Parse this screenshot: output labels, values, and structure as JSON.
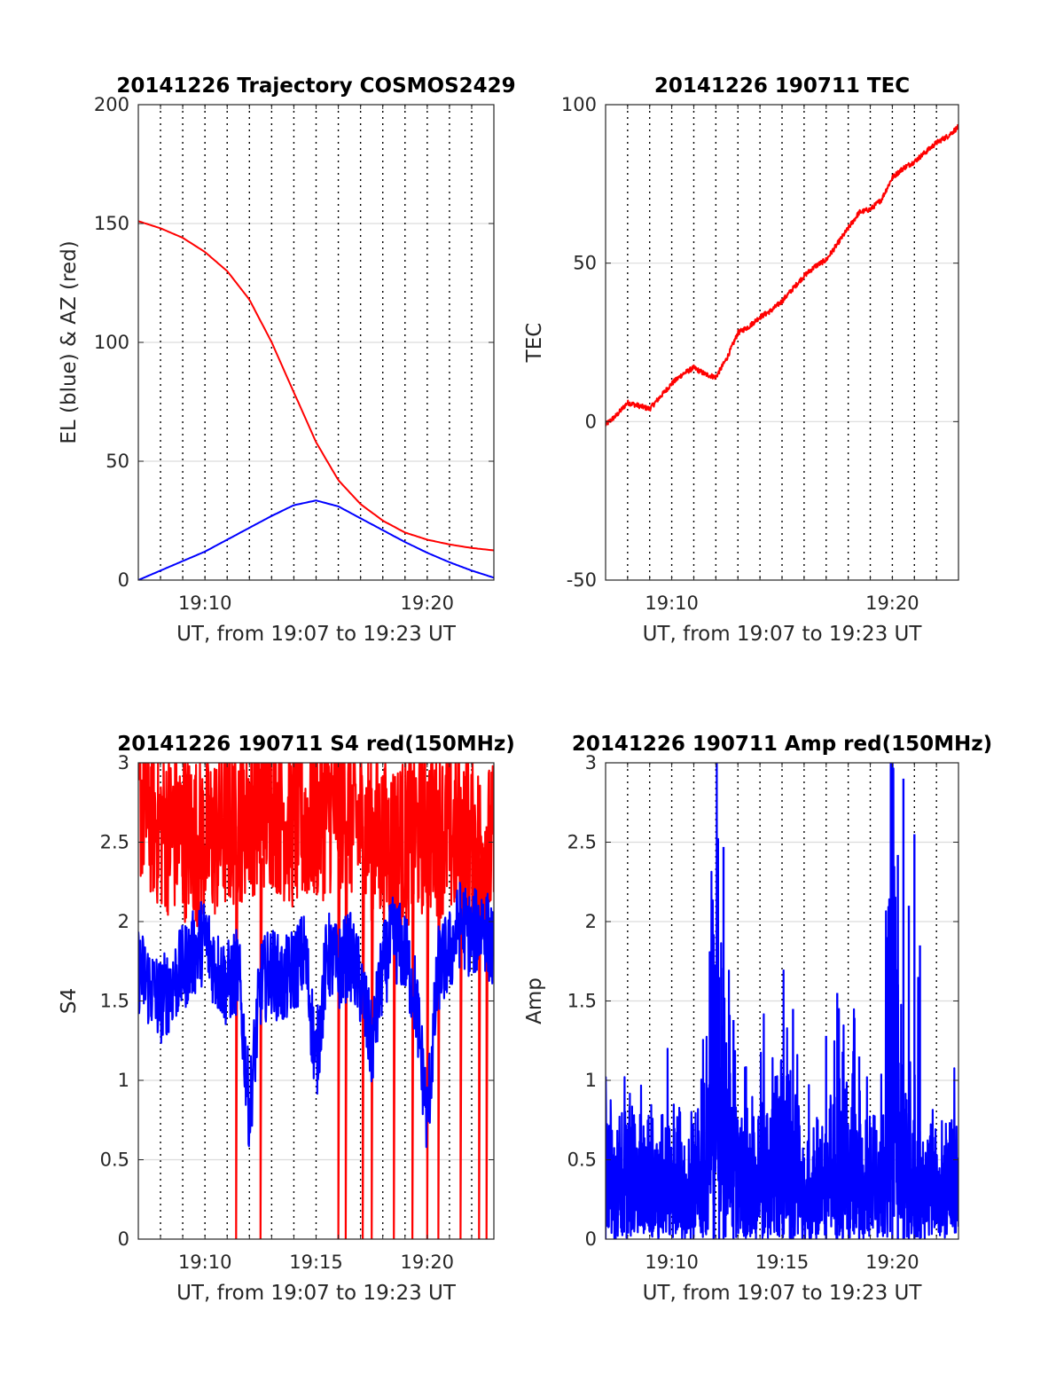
{
  "chart_data": [
    {
      "type": "line",
      "title": "20141226 Trajectory COSMOS2429",
      "xlabel": "UT, from 19:07 to 19:23 UT",
      "ylabel": "EL (blue) & AZ (red)",
      "xlim": [
        19.1167,
        19.3833
      ],
      "ylim": [
        0,
        200
      ],
      "yticks": [
        0,
        50,
        100,
        150,
        200
      ],
      "xticks": [
        {
          "v": 19.1667,
          "label": "19:10"
        },
        {
          "v": 19.3333,
          "label": "19:20"
        }
      ],
      "grid": true,
      "series": [
        {
          "color": "#ff0000",
          "x": [
            19.1167,
            19.1333,
            19.15,
            19.1667,
            19.1833,
            19.2,
            19.2167,
            19.2333,
            19.25,
            19.2667,
            19.2833,
            19.3,
            19.3167,
            19.3333,
            19.35,
            19.3667,
            19.3833
          ],
          "values": [
            151,
            148,
            144,
            138,
            130,
            118,
            100,
            79,
            58,
            42,
            32,
            25,
            20,
            17,
            15,
            13.5,
            12.5
          ]
        },
        {
          "color": "#0000ff",
          "x": [
            19.1167,
            19.1333,
            19.15,
            19.1667,
            19.1833,
            19.2,
            19.2167,
            19.2333,
            19.25,
            19.2667,
            19.2833,
            19.3,
            19.3167,
            19.3333,
            19.35,
            19.3667,
            19.3833
          ],
          "values": [
            0,
            4,
            8,
            12,
            17,
            22,
            27,
            31.5,
            33.5,
            31,
            26,
            21,
            16,
            11.5,
            7.5,
            4,
            1
          ]
        }
      ]
    },
    {
      "type": "line",
      "title": "20141226 190711 TEC",
      "xlabel": "UT, from 19:07 to 19:23 UT",
      "ylabel": "TEC",
      "xlim": [
        19.1167,
        19.3833
      ],
      "ylim": [
        -50,
        100
      ],
      "yticks": [
        -50,
        0,
        50,
        100
      ],
      "xticks": [
        {
          "v": 19.1667,
          "label": "19:10"
        },
        {
          "v": 19.3333,
          "label": "19:20"
        }
      ],
      "grid": true,
      "series": [
        {
          "color": "#ff0000",
          "noise": 0.8,
          "x": [
            19.1167,
            19.125,
            19.1333,
            19.1417,
            19.15,
            19.1583,
            19.1667,
            19.175,
            19.1833,
            19.1917,
            19.2,
            19.2083,
            19.2167,
            19.225,
            19.2333,
            19.2417,
            19.25,
            19.2583,
            19.2667,
            19.275,
            19.2833,
            19.2917,
            19.3,
            19.3083,
            19.3167,
            19.325,
            19.3333,
            19.3417,
            19.35,
            19.3583,
            19.3667,
            19.375,
            19.3833
          ],
          "values": [
            -1,
            2,
            6,
            5,
            4,
            8,
            12,
            15,
            17,
            15,
            14,
            20,
            28,
            30,
            33,
            35,
            38,
            42,
            46,
            49,
            51,
            56,
            61,
            66,
            67,
            70,
            77,
            80,
            82,
            85,
            88,
            90,
            93
          ]
        }
      ]
    },
    {
      "type": "line",
      "title": "20141226 190711 S4 red(150MHz)",
      "xlabel": "UT, from 19:07 to 19:23 UT",
      "ylabel": "S4",
      "xlim": [
        19.1167,
        19.3833
      ],
      "ylim": [
        0,
        3
      ],
      "yticks": [
        0,
        0.5,
        1,
        1.5,
        2,
        2.5,
        3
      ],
      "xticks": [
        {
          "v": 19.1667,
          "label": "19:10"
        },
        {
          "v": 19.25,
          "label": "19:15"
        },
        {
          "v": 19.3333,
          "label": "19:20"
        }
      ],
      "grid": true,
      "series": [
        {
          "color": "#ff0000",
          "noise": 0.55,
          "drops": [
            19.19,
            19.2083,
            19.2667,
            19.2722,
            19.285,
            19.2917,
            19.3083,
            19.3222,
            19.3333,
            19.3417,
            19.3583,
            19.3722,
            19.3778
          ],
          "x": [
            19.1167,
            19.1333,
            19.15,
            19.1667,
            19.1833,
            19.2,
            19.2167,
            19.2333,
            19.25,
            19.2667,
            19.2833,
            19.3,
            19.3167,
            19.3333,
            19.35,
            19.3667,
            19.3833
          ],
          "values": [
            2.8,
            2.6,
            2.55,
            2.5,
            2.6,
            2.7,
            2.75,
            2.6,
            2.65,
            2.75,
            2.6,
            2.5,
            2.5,
            2.6,
            2.55,
            2.5,
            2.45
          ]
        },
        {
          "color": "#0000ff",
          "noise": 0.28,
          "x": [
            19.1167,
            19.125,
            19.1333,
            19.1417,
            19.15,
            19.1583,
            19.1667,
            19.175,
            19.1833,
            19.1917,
            19.2,
            19.2083,
            19.2167,
            19.225,
            19.2333,
            19.2417,
            19.25,
            19.2583,
            19.2667,
            19.275,
            19.2833,
            19.2917,
            19.3,
            19.3083,
            19.3167,
            19.325,
            19.3333,
            19.3417,
            19.35,
            19.3583,
            19.3667,
            19.375,
            19.3833
          ],
          "values": [
            1.7,
            1.6,
            1.5,
            1.6,
            1.7,
            1.8,
            1.9,
            1.7,
            1.6,
            1.7,
            0.8,
            1.6,
            1.7,
            1.6,
            1.7,
            1.8,
            1.1,
            1.8,
            1.7,
            1.8,
            1.6,
            1.2,
            1.7,
            1.9,
            1.8,
            1.5,
            0.75,
            1.7,
            1.8,
            2.0,
            1.9,
            2.0,
            1.8
          ]
        }
      ]
    },
    {
      "type": "line",
      "title": "20141226 190711 Amp red(150MHz)",
      "xlabel": "UT, from 19:07 to 19:23 UT",
      "ylabel": "Amp",
      "xlim": [
        19.1167,
        19.3833
      ],
      "ylim": [
        0,
        3
      ],
      "yticks": [
        0,
        0.5,
        1,
        1.5,
        2,
        2.5,
        3
      ],
      "xticks": [
        {
          "v": 19.1667,
          "label": "19:10"
        },
        {
          "v": 19.25,
          "label": "19:15"
        },
        {
          "v": 19.3333,
          "label": "19:20"
        }
      ],
      "grid": true,
      "series": [
        {
          "color": "#0000ff",
          "noise": 0.75,
          "x": [
            19.1167,
            19.1333,
            19.15,
            19.1667,
            19.1833,
            19.1917,
            19.2,
            19.2083,
            19.2167,
            19.2333,
            19.25,
            19.2667,
            19.2833,
            19.2917,
            19.3,
            19.3083,
            19.3167,
            19.325,
            19.3333,
            19.3417,
            19.35,
            19.3667,
            19.3833
          ],
          "values": [
            0.35,
            0.35,
            0.3,
            0.3,
            0.3,
            0.5,
            1.2,
            0.6,
            0.4,
            0.35,
            0.5,
            0.3,
            0.3,
            0.4,
            0.6,
            0.35,
            0.3,
            0.4,
            1.5,
            0.5,
            0.35,
            0.3,
            0.3
          ]
        }
      ],
      "peaks": [
        {
          "x": 19.1983,
          "value": 1.92
        },
        {
          "x": 19.2025,
          "value": 1.65
        },
        {
          "x": 19.2058,
          "value": 2.47
        },
        {
          "x": 19.2133,
          "value": 1.38
        },
        {
          "x": 19.2583,
          "value": 1.45
        },
        {
          "x": 19.2833,
          "value": 1.28
        },
        {
          "x": 19.2917,
          "value": 1.55
        },
        {
          "x": 19.2958,
          "value": 1.18
        },
        {
          "x": 19.3083,
          "value": 1.15
        },
        {
          "x": 19.3333,
          "value": 1.88
        },
        {
          "x": 19.3375,
          "value": 2.42
        },
        {
          "x": 19.3417,
          "value": 2.9
        },
        {
          "x": 19.3458,
          "value": 2.1
        },
        {
          "x": 19.35,
          "value": 2.55
        },
        {
          "x": 19.3542,
          "value": 1.85
        }
      ]
    }
  ]
}
